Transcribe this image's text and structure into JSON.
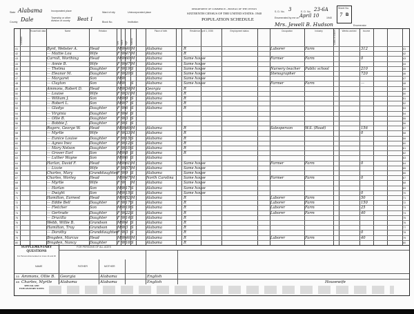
{
  "header": {
    "state_label": "State",
    "state": "Alabama",
    "county_label": "County",
    "county": "Dale",
    "incorporated_place_label": "Incorporated place",
    "township_label": "Township or other division of county",
    "township": "Beat 1",
    "ward_label": "Ward of city",
    "block_label": "Block No.",
    "unincorporated_label": "Unincorporated place",
    "institution_label": "Institution",
    "department": "DEPARTMENT OF COMMERCE—BUREAU OF THE CENSUS",
    "census_title": "SIXTEENTH CENSUS OF THE UNITED STATES: 1940",
    "schedule_title": "POPULATION SCHEDULE",
    "sd_label": "S. D. No.",
    "sd": "3",
    "ed_label": "E. D. No.",
    "ed": "23-6A",
    "sheet_label": "Sheet No.",
    "sheet": "7",
    "sheet_side": "B",
    "enumerated_label": "Enumerated by me on",
    "enumerated_date": "April 10",
    "year_suffix": "1940",
    "enumerator": "Mrs. Jewell B. Hudson",
    "enumerator_label": "Enumerator"
  },
  "columns": [
    "Location",
    "Household data",
    "Name",
    "Relation",
    "Sex",
    "Race",
    "Age",
    "Marital",
    "Place of birth",
    "Residence April 1, 1935",
    "Employment status",
    "Occupation",
    "Industry",
    "Class of worker",
    "Weeks worked",
    "Income"
  ],
  "rows": [
    {
      "line": "41",
      "name": "Byrd, Webster A.",
      "rel": "Head",
      "sex": "M",
      "race": "W",
      "age": "46",
      "mar": "M",
      "birth": "Alabama",
      "res": "R",
      "occ": "Laborer",
      "ind": "Farm",
      "inc": "312"
    },
    {
      "line": "42",
      "name": "— Mattie Lou",
      "rel": "Wife",
      "sex": "F",
      "race": "W",
      "age": "4?",
      "mar": "M",
      "birth": "Alabama",
      "res": "R",
      "occ": "",
      "ind": "",
      "inc": ""
    },
    {
      "line": "43",
      "name": "Carroll, Worthing",
      "rel": "Head",
      "sex": "M",
      "race": "W",
      "age": "60",
      "mar": "M",
      "birth": "Alabama",
      "res": "Same house",
      "occ": "Farmer",
      "ind": "Farm",
      "inc": "0"
    },
    {
      "line": "44",
      "name": "— Annie B.",
      "rel": "Wife",
      "sex": "F",
      "race": "W",
      "age": "47",
      "mar": "M",
      "birth": "Alabama",
      "res": "Same house",
      "occ": "",
      "ind": "",
      "inc": ""
    },
    {
      "line": "45",
      "name": "— Thelma",
      "rel": "Daughter",
      "sex": "F",
      "race": "W",
      "age": "19",
      "mar": "S",
      "birth": "Alabama",
      "res": "Same house",
      "occ": "Nursery teacher",
      "ind": "Public school",
      "inc": "210"
    },
    {
      "line": "46",
      "name": "— Eleanor M.",
      "rel": "Daughter",
      "sex": "F",
      "race": "W",
      "age": "20",
      "mar": "S",
      "birth": "Alabama",
      "res": "Same house",
      "occ": "Stenographer",
      "ind": "",
      "inc": "720"
    },
    {
      "line": "47",
      "name": "— Margaret",
      "rel": "Son",
      "sex": "M",
      "race": "W",
      "age": "",
      "mar": "",
      "birth": "Alabama",
      "res": "Same house",
      "occ": "",
      "ind": "",
      "inc": ""
    },
    {
      "line": "48",
      "name": "— Clayton",
      "rel": "Son",
      "sex": "M",
      "race": "W",
      "age": "",
      "mar": "S",
      "birth": "Alabama",
      "res": "Same house",
      "occ": "Farmer",
      "ind": "Farm",
      "inc": "—"
    },
    {
      "line": "49",
      "name": "Ammons, Robert D.",
      "rel": "Head",
      "sex": "M",
      "race": "W",
      "age": "34",
      "mar": "M",
      "birth": "Georgia",
      "res": "R",
      "occ": "",
      "ind": "",
      "inc": ""
    },
    {
      "line": "50",
      "name": "— Louise",
      "rel": "Wife",
      "sex": "F",
      "race": "W",
      "age": "31",
      "mar": "M",
      "birth": "Alabama",
      "res": "R",
      "occ": "",
      "ind": "",
      "inc": ""
    },
    {
      "line": "51",
      "name": "— William J.",
      "rel": "Son",
      "sex": "M",
      "race": "W",
      "age": "9",
      "mar": "S",
      "birth": "Alabama",
      "res": "R",
      "occ": "",
      "ind": "",
      "inc": ""
    },
    {
      "line": "52",
      "name": "— Robert L.",
      "rel": "Son",
      "sex": "M",
      "race": "W",
      "age": "7",
      "mar": "S",
      "birth": "Alabama",
      "res": "R",
      "occ": "",
      "ind": "",
      "inc": ""
    },
    {
      "line": "53",
      "name": "— Gladys",
      "rel": "Daughter",
      "sex": "F",
      "race": "W",
      "age": "6",
      "mar": "S",
      "birth": "Alabama",
      "res": "R",
      "occ": "",
      "ind": "",
      "inc": ""
    },
    {
      "line": "54",
      "name": "— Virginia",
      "rel": "Daughter",
      "sex": "F",
      "race": "W",
      "age": "4",
      "mar": "S",
      "birth": "",
      "res": "",
      "occ": "",
      "ind": "",
      "inc": ""
    },
    {
      "line": "55",
      "name": "— Ollie B.",
      "rel": "Daughter",
      "sex": "F",
      "race": "W",
      "age": "3",
      "mar": "S",
      "birth": "",
      "res": "",
      "occ": "",
      "ind": "",
      "inc": ""
    },
    {
      "line": "56",
      "name": "— Bobbie J.",
      "rel": "Daughter",
      "sex": "F",
      "race": "W",
      "age": "1",
      "mar": "S",
      "birth": "",
      "res": "",
      "occ": "",
      "ind": "",
      "inc": ""
    },
    {
      "line": "57",
      "name": "Rogers, George W.",
      "rel": "Head",
      "sex": "M",
      "race": "W",
      "age": "40",
      "mar": "M",
      "birth": "Alabama",
      "res": "R",
      "occ": "Salesperson",
      "ind": "W.S. (Road)",
      "inc": "156"
    },
    {
      "line": "58",
      "name": "— Myrtle",
      "rel": "Wife",
      "sex": "F",
      "race": "W",
      "age": "33",
      "mar": "M",
      "birth": "Alabama",
      "res": "R",
      "occ": "",
      "ind": "",
      "inc": "0"
    },
    {
      "line": "59",
      "name": "— Eunice Louise",
      "rel": "Daughter",
      "sex": "F",
      "race": "W",
      "age": "15",
      "mar": "S",
      "birth": "Alabama",
      "res": "R",
      "occ": "",
      "ind": "",
      "inc": ""
    },
    {
      "line": "60",
      "name": "— Agnes Inez",
      "rel": "Daughter",
      "sex": "F",
      "race": "W",
      "age": "12",
      "mar": "S",
      "birth": "Alabama",
      "res": "R",
      "occ": "",
      "ind": "",
      "inc": ""
    },
    {
      "line": "61",
      "name": "— Mary Nelson",
      "rel": "Daughter",
      "sex": "F",
      "race": "W",
      "age": "10",
      "mar": "S",
      "birth": "Alabama",
      "res": "R",
      "occ": "",
      "ind": "",
      "inc": ""
    },
    {
      "line": "62",
      "name": "— Grover Earl",
      "rel": "Son",
      "sex": "M",
      "race": "W",
      "age": "8",
      "mar": "S",
      "birth": "Alabama",
      "res": "R",
      "occ": "",
      "ind": "",
      "inc": ""
    },
    {
      "line": "63",
      "name": "— Luther Wayne",
      "rel": "Son",
      "sex": "M",
      "race": "W",
      "age": "6",
      "mar": "S",
      "birth": "Alabama",
      "res": "",
      "occ": "",
      "ind": "",
      "inc": ""
    },
    {
      "line": "64",
      "name": "Harlan, David F.",
      "rel": "Head",
      "sex": "M",
      "race": "W",
      "age": "61",
      "mar": "M",
      "birth": "Alabama",
      "res": "Same house",
      "occ": "Farmer",
      "ind": "Farm",
      "inc": "0"
    },
    {
      "line": "65",
      "name": "— Lizzie",
      "rel": "Wife",
      "sex": "F",
      "race": "W",
      "age": "57",
      "mar": "M",
      "birth": "Alabama",
      "res": "Same house",
      "occ": "",
      "ind": "",
      "inc": ""
    },
    {
      "line": "66",
      "name": "Charles, Mary",
      "rel": "Granddaughter",
      "sex": "F",
      "race": "W",
      "age": "9",
      "mar": "S",
      "birth": "Alabama",
      "res": "Same house",
      "occ": "",
      "ind": "",
      "inc": ""
    },
    {
      "line": "67",
      "name": "Charles, Worley",
      "rel": "Head",
      "sex": "M",
      "race": "W",
      "age": "47",
      "mar": "M",
      "birth": "North Carolina",
      "res": "Same house",
      "occ": "Farmer",
      "ind": "Farm",
      "inc": "0"
    },
    {
      "line": "68",
      "name": "— Myrtle",
      "rel": "Wife",
      "sex": "F",
      "race": "W",
      "age": "",
      "mar": "M",
      "birth": "Alabama",
      "res": "Same house",
      "occ": "",
      "ind": "",
      "inc": ""
    },
    {
      "line": "69",
      "name": "— Harlan",
      "rel": "Son",
      "sex": "M",
      "race": "W",
      "age": "17",
      "mar": "S",
      "birth": "Alabama",
      "res": "Same house",
      "occ": "",
      "ind": "",
      "inc": ""
    },
    {
      "line": "70",
      "name": "— Dwight",
      "rel": "Son",
      "sex": "M",
      "race": "W",
      "age": "15",
      "mar": "S",
      "birth": "Alabama",
      "res": "Same house",
      "occ": "",
      "ind": "",
      "inc": "0"
    },
    {
      "line": "71",
      "name": "Hamilton, Earnest",
      "rel": "Head",
      "sex": "M",
      "race": "W",
      "age": "52",
      "mar": "M",
      "birth": "Alabama",
      "res": "R",
      "occ": "Laborer",
      "ind": "Farm",
      "inc": "50"
    },
    {
      "line": "72",
      "name": "— Eddie Bell",
      "rel": "Daughter",
      "sex": "F",
      "race": "W",
      "age": "17",
      "mar": "S",
      "birth": "Alabama",
      "res": "R",
      "occ": "Laborer",
      "ind": "Farm",
      "inc": "150"
    },
    {
      "line": "73",
      "name": "— Fletcher",
      "rel": "Son",
      "sex": "M",
      "race": "W",
      "age": "19",
      "mar": "S",
      "birth": "Alabama",
      "res": "R",
      "occ": "Laborer",
      "ind": "Farm",
      "inc": "25"
    },
    {
      "line": "74",
      "name": "— Gertrude",
      "rel": "Daughter",
      "sex": "F",
      "race": "W",
      "age": "22",
      "mar": "S",
      "birth": "Alabama",
      "res": "R",
      "occ": "Laborer",
      "ind": "Farm",
      "inc": "40"
    },
    {
      "line": "75",
      "name": "— Drucilla",
      "rel": "Daughter",
      "sex": "F",
      "race": "W",
      "age": "14",
      "mar": "S",
      "birth": "Alabama",
      "res": "R",
      "occ": "",
      "ind": "",
      "inc": ""
    },
    {
      "line": "76",
      "name": "Webb, Willie B.",
      "rel": "Grandson",
      "sex": "M",
      "race": "W",
      "age": "4",
      "mar": "S",
      "birth": "Alabama",
      "res": "R",
      "occ": "",
      "ind": "",
      "inc": ""
    },
    {
      "line": "77",
      "name": "Hamilton, Troy",
      "rel": "Grandson",
      "sex": "M",
      "race": "W",
      "age": "3",
      "mar": "S",
      "birth": "Alabama",
      "res": "R",
      "occ": "",
      "ind": "",
      "inc": ""
    },
    {
      "line": "78",
      "name": "— Dorothy",
      "rel": "Granddaughter",
      "sex": "F",
      "race": "W",
      "age": "3",
      "mar": "S",
      "birth": "Alabama",
      "res": "R",
      "occ": "",
      "ind": "",
      "inc": "0"
    },
    {
      "line": "79",
      "name": "Brogden, Marcus",
      "rel": "Head",
      "sex": "M",
      "race": "W",
      "age": "46",
      "mar": "M",
      "birth": "Alabama",
      "res": "R",
      "occ": "Laborer",
      "ind": "Farm",
      "inc": "40"
    },
    {
      "line": "80",
      "name": "Brogden, Nancy",
      "rel": "Daughter",
      "sex": "F",
      "race": "W",
      "age": "16",
      "mar": "S",
      "birth": "Alabama",
      "res": "R",
      "occ": "",
      "ind": "",
      "inc": ""
    }
  ],
  "supplementary": {
    "title": "SUPPLEMENTARY QUESTIONS",
    "subtitle": "For Persons Enumerated on Lines 14 and 29",
    "name_col": "NAME",
    "persons_header": "FOR PERSONS OF ALL AGES",
    "father_col": "FATHER",
    "mother_col": "MOTHER",
    "footnotes_label": "SPECIAL AND EXPLANATORY NOTES",
    "rows": [
      {
        "line": "55",
        "name": "Ammons, Ollie B.",
        "father": "Georgia",
        "mother": "Alabama",
        "lang": "English",
        "extra": ""
      },
      {
        "line": "68",
        "name": "Charles, Myrtle",
        "father": "Alabama",
        "mother": "Alabama",
        "lang": "English",
        "extra": "Housewife"
      }
    ]
  }
}
